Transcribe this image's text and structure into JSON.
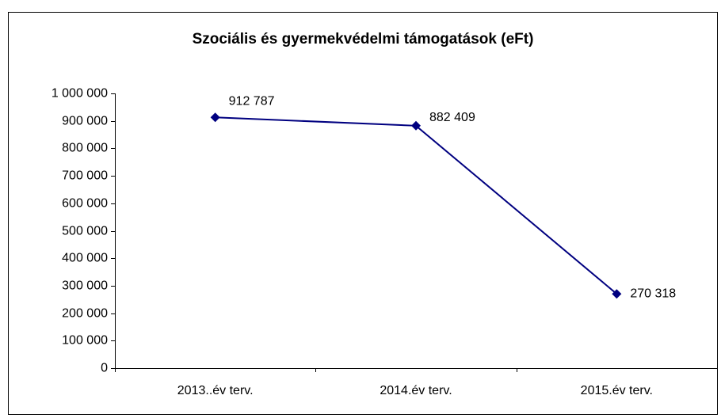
{
  "chart_data": {
    "type": "line",
    "title": "Szociális és gyermekvédelmi támogatások (eFt)",
    "categories": [
      "2013..év terv.",
      "2014.év terv.",
      "2015.év terv."
    ],
    "values": [
      912787,
      882409,
      270318
    ],
    "value_labels": [
      "912 787",
      "882 409",
      "270 318"
    ],
    "color": "#000080",
    "ylim": [
      0,
      1000000
    ],
    "yticks": [
      0,
      {
        "value": 100000,
        "label": "100 000"
      },
      {
        "value": 200000,
        "label": "200 000"
      },
      {
        "value": 300000,
        "label": "300 000"
      },
      {
        "value": 400000,
        "label": "400 000"
      },
      {
        "value": 500000,
        "label": "500 000"
      },
      {
        "value": 600000,
        "label": "600 000"
      },
      {
        "value": 700000,
        "label": "700 000"
      },
      {
        "value": 800000,
        "label": "800 000"
      },
      {
        "value": 900000,
        "label": "900 000"
      },
      {
        "value": 1000000,
        "label": "1 000 000"
      }
    ],
    "grid": false
  }
}
